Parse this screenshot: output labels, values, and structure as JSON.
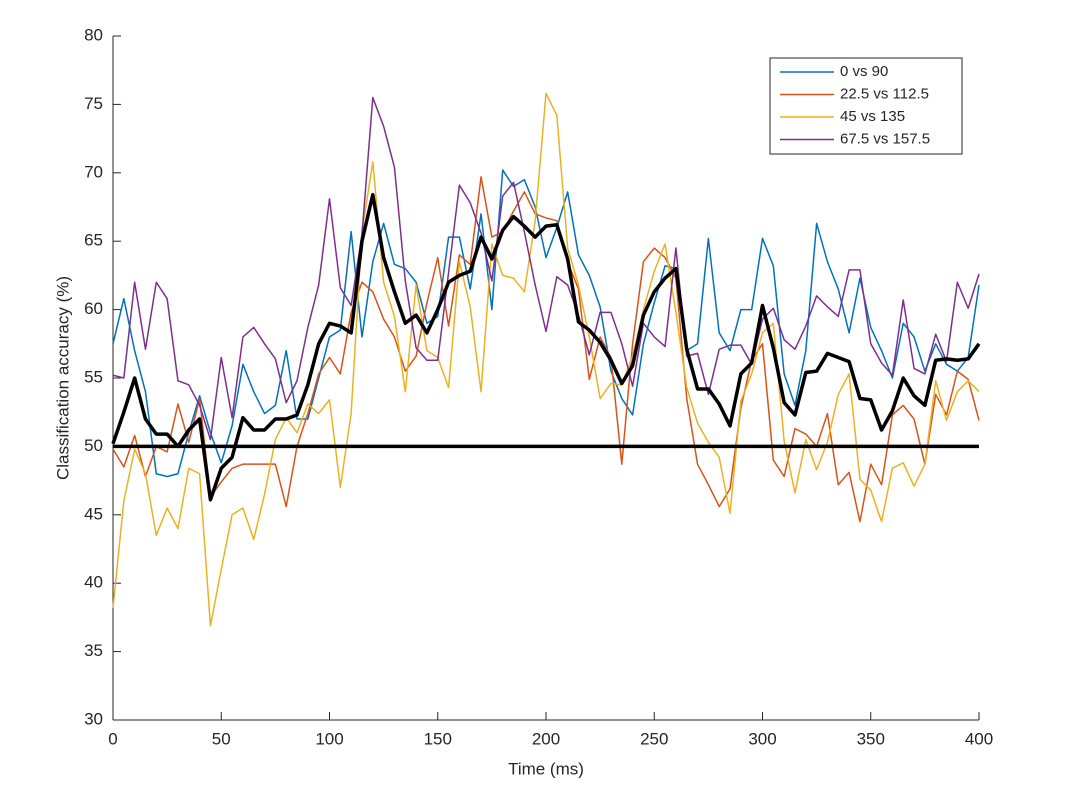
{
  "chart_data": {
    "type": "line",
    "x_label": "Time (ms)",
    "y_label": "Classification accuracy (%)",
    "x": [
      0,
      5,
      10,
      15,
      20,
      25,
      30,
      35,
      40,
      45,
      50,
      55,
      60,
      65,
      70,
      75,
      80,
      85,
      90,
      95,
      100,
      105,
      110,
      115,
      120,
      125,
      130,
      135,
      140,
      145,
      150,
      155,
      160,
      165,
      170,
      175,
      180,
      185,
      190,
      195,
      200,
      205,
      210,
      215,
      220,
      225,
      230,
      235,
      240,
      245,
      250,
      255,
      260,
      265,
      270,
      275,
      280,
      285,
      290,
      295,
      300,
      305,
      310,
      315,
      320,
      325,
      330,
      335,
      340,
      345,
      350,
      355,
      360,
      365,
      370,
      375,
      380,
      385,
      390,
      395,
      400
    ],
    "xlim": [
      0,
      400
    ],
    "xticks": [
      0,
      50,
      100,
      150,
      200,
      250,
      300,
      350,
      400
    ],
    "ylim": [
      30,
      80
    ],
    "yticks": [
      30,
      35,
      40,
      45,
      50,
      55,
      60,
      65,
      70,
      75,
      80
    ],
    "grid": false,
    "legend": "upper right",
    "series": [
      {
        "name": "0 vs 90",
        "color": "#0072bd",
        "values": [
          57.5,
          60.8,
          57,
          54,
          48,
          47.8,
          48,
          51,
          53.7,
          51,
          48.8,
          51.5,
          56,
          54,
          52.4,
          53,
          57,
          52,
          52,
          55,
          58,
          58.5,
          65.7,
          58,
          63.5,
          66.3,
          63.3,
          63,
          62,
          59,
          59.5,
          65.3,
          65.3,
          61.5,
          67,
          60,
          70.2,
          69,
          69.5,
          67.5,
          63.8,
          66,
          68.6,
          64,
          62.5,
          60.2,
          55.5,
          53.5,
          52.3,
          57.5,
          60.5,
          63.2,
          63,
          57,
          57.5,
          65.2,
          58.3,
          57,
          60,
          60,
          65.2,
          63.2,
          55.3,
          53,
          57,
          66.3,
          63.5,
          61.5,
          58.3,
          62.3,
          58.7,
          57,
          55,
          59,
          58,
          55.5,
          57.5,
          56,
          55.5,
          56.5,
          61.8
        ]
      },
      {
        "name": "22.5 vs 112.5",
        "color": "#d95319",
        "values": [
          49.8,
          48.5,
          50.8,
          47.8,
          50,
          49.6,
          53.1,
          50.3,
          53.5,
          46.3,
          47.4,
          48.4,
          48.7,
          48.7,
          48.7,
          48.7,
          45.6,
          50,
          52.4,
          55.3,
          56.5,
          55.3,
          59.8,
          62,
          61.3,
          59.3,
          58,
          55.5,
          56.6,
          60.5,
          63.8,
          58.8,
          64,
          63.3,
          69.7,
          65.3,
          65.7,
          67.2,
          68.6,
          67,
          66.7,
          66.5,
          63.5,
          61.5,
          54.9,
          58,
          56.5,
          48.7,
          57.5,
          63.5,
          64.5,
          63.8,
          62.3,
          53.5,
          48.7,
          47.2,
          45.6,
          46.9,
          52.8,
          56.3,
          57.5,
          49,
          47.8,
          51.3,
          50.9,
          50,
          52.4,
          47.2,
          48.1,
          44.5,
          48.7,
          47.2,
          52.3,
          53,
          52,
          48.7,
          53.8,
          52.3,
          55.5,
          54.9,
          51.9
        ]
      },
      {
        "name": "45 vs 135",
        "color": "#edb120",
        "values": [
          38.2,
          46,
          49.8,
          48,
          43.5,
          45.5,
          44,
          48.4,
          48,
          36.9,
          41,
          45,
          45.5,
          43.2,
          46.5,
          50.5,
          52.1,
          51,
          53.1,
          52.4,
          53.4,
          47,
          52.4,
          65.7,
          70.8,
          62,
          59.5,
          54,
          61.8,
          57,
          56.5,
          54.3,
          63.5,
          60.2,
          54,
          64.8,
          62.5,
          62.3,
          61.3,
          66.5,
          75.8,
          74.2,
          64.5,
          61.8,
          58,
          53.5,
          54.6,
          54.5,
          56.6,
          60,
          62.8,
          64.8,
          59.8,
          54.3,
          51.7,
          50.3,
          49.2,
          45.1,
          53.3,
          55.3,
          58.3,
          59,
          50.4,
          46.6,
          50.5,
          48.3,
          50.3,
          53.8,
          55.3,
          47.6,
          46.8,
          44.5,
          48.4,
          48.8,
          47.1,
          48.7,
          54.8,
          51.9,
          54,
          54.8,
          54
        ]
      },
      {
        "name": "67.5 vs 157.5",
        "color": "#7e2f8e",
        "values": [
          55.2,
          55,
          62,
          57.1,
          62,
          60.8,
          54.8,
          54.5,
          53,
          50.5,
          56.5,
          52.1,
          58,
          58.7,
          57.5,
          56.4,
          53.2,
          54.8,
          58.7,
          61.8,
          68.1,
          61.6,
          60.3,
          65.5,
          75.5,
          73.4,
          70.4,
          62.1,
          57.2,
          56.3,
          56.3,
          62.7,
          69.1,
          67.8,
          65.6,
          62.1,
          68.3,
          69.3,
          65.7,
          61.8,
          58.4,
          62.4,
          61.8,
          59.6,
          56.7,
          59.8,
          59.8,
          57.5,
          54.4,
          59,
          58,
          57.3,
          64.5,
          56.6,
          56.8,
          53.8,
          57.1,
          57.4,
          57.4,
          56,
          59.3,
          60.1,
          57.8,
          57.1,
          58.8,
          61,
          60.2,
          59.5,
          62.9,
          62.9,
          57.5,
          56.1,
          55.2,
          60.7,
          55.7,
          55.3,
          58.2,
          56.2,
          62,
          60.1,
          62.6
        ]
      }
    ],
    "bold_line": {
      "color": "#000000",
      "values": [
        50.2,
        52.5,
        55,
        52,
        50.9,
        50.9,
        50,
        51.2,
        52,
        46.1,
        48.4,
        49.2,
        52.1,
        51.2,
        51.2,
        52,
        52,
        52.3,
        54.5,
        57.5,
        59,
        58.8,
        58.3,
        65,
        68.4,
        63.8,
        61.3,
        59,
        59.6,
        58.3,
        60,
        62,
        62.5,
        62.8,
        65.3,
        63.7,
        65.8,
        66.8,
        66.1,
        65.3,
        66.1,
        66.2,
        63.7,
        59.1,
        58.5,
        57.6,
        56.3,
        54.6,
        55.9,
        59.6,
        61.3,
        62.3,
        63,
        57.1,
        54.2,
        54.2,
        53.1,
        51.5,
        55.3,
        56.1,
        60.3,
        57.2,
        53.2,
        52.3,
        55.4,
        55.5,
        56.8,
        56.5,
        56.2,
        53.5,
        53.4,
        51.2,
        52.6,
        55,
        53.7,
        53,
        56.3,
        56.4,
        56.3,
        56.4,
        57.5
      ]
    },
    "reference_line": {
      "y": 50,
      "color": "#000000"
    }
  }
}
